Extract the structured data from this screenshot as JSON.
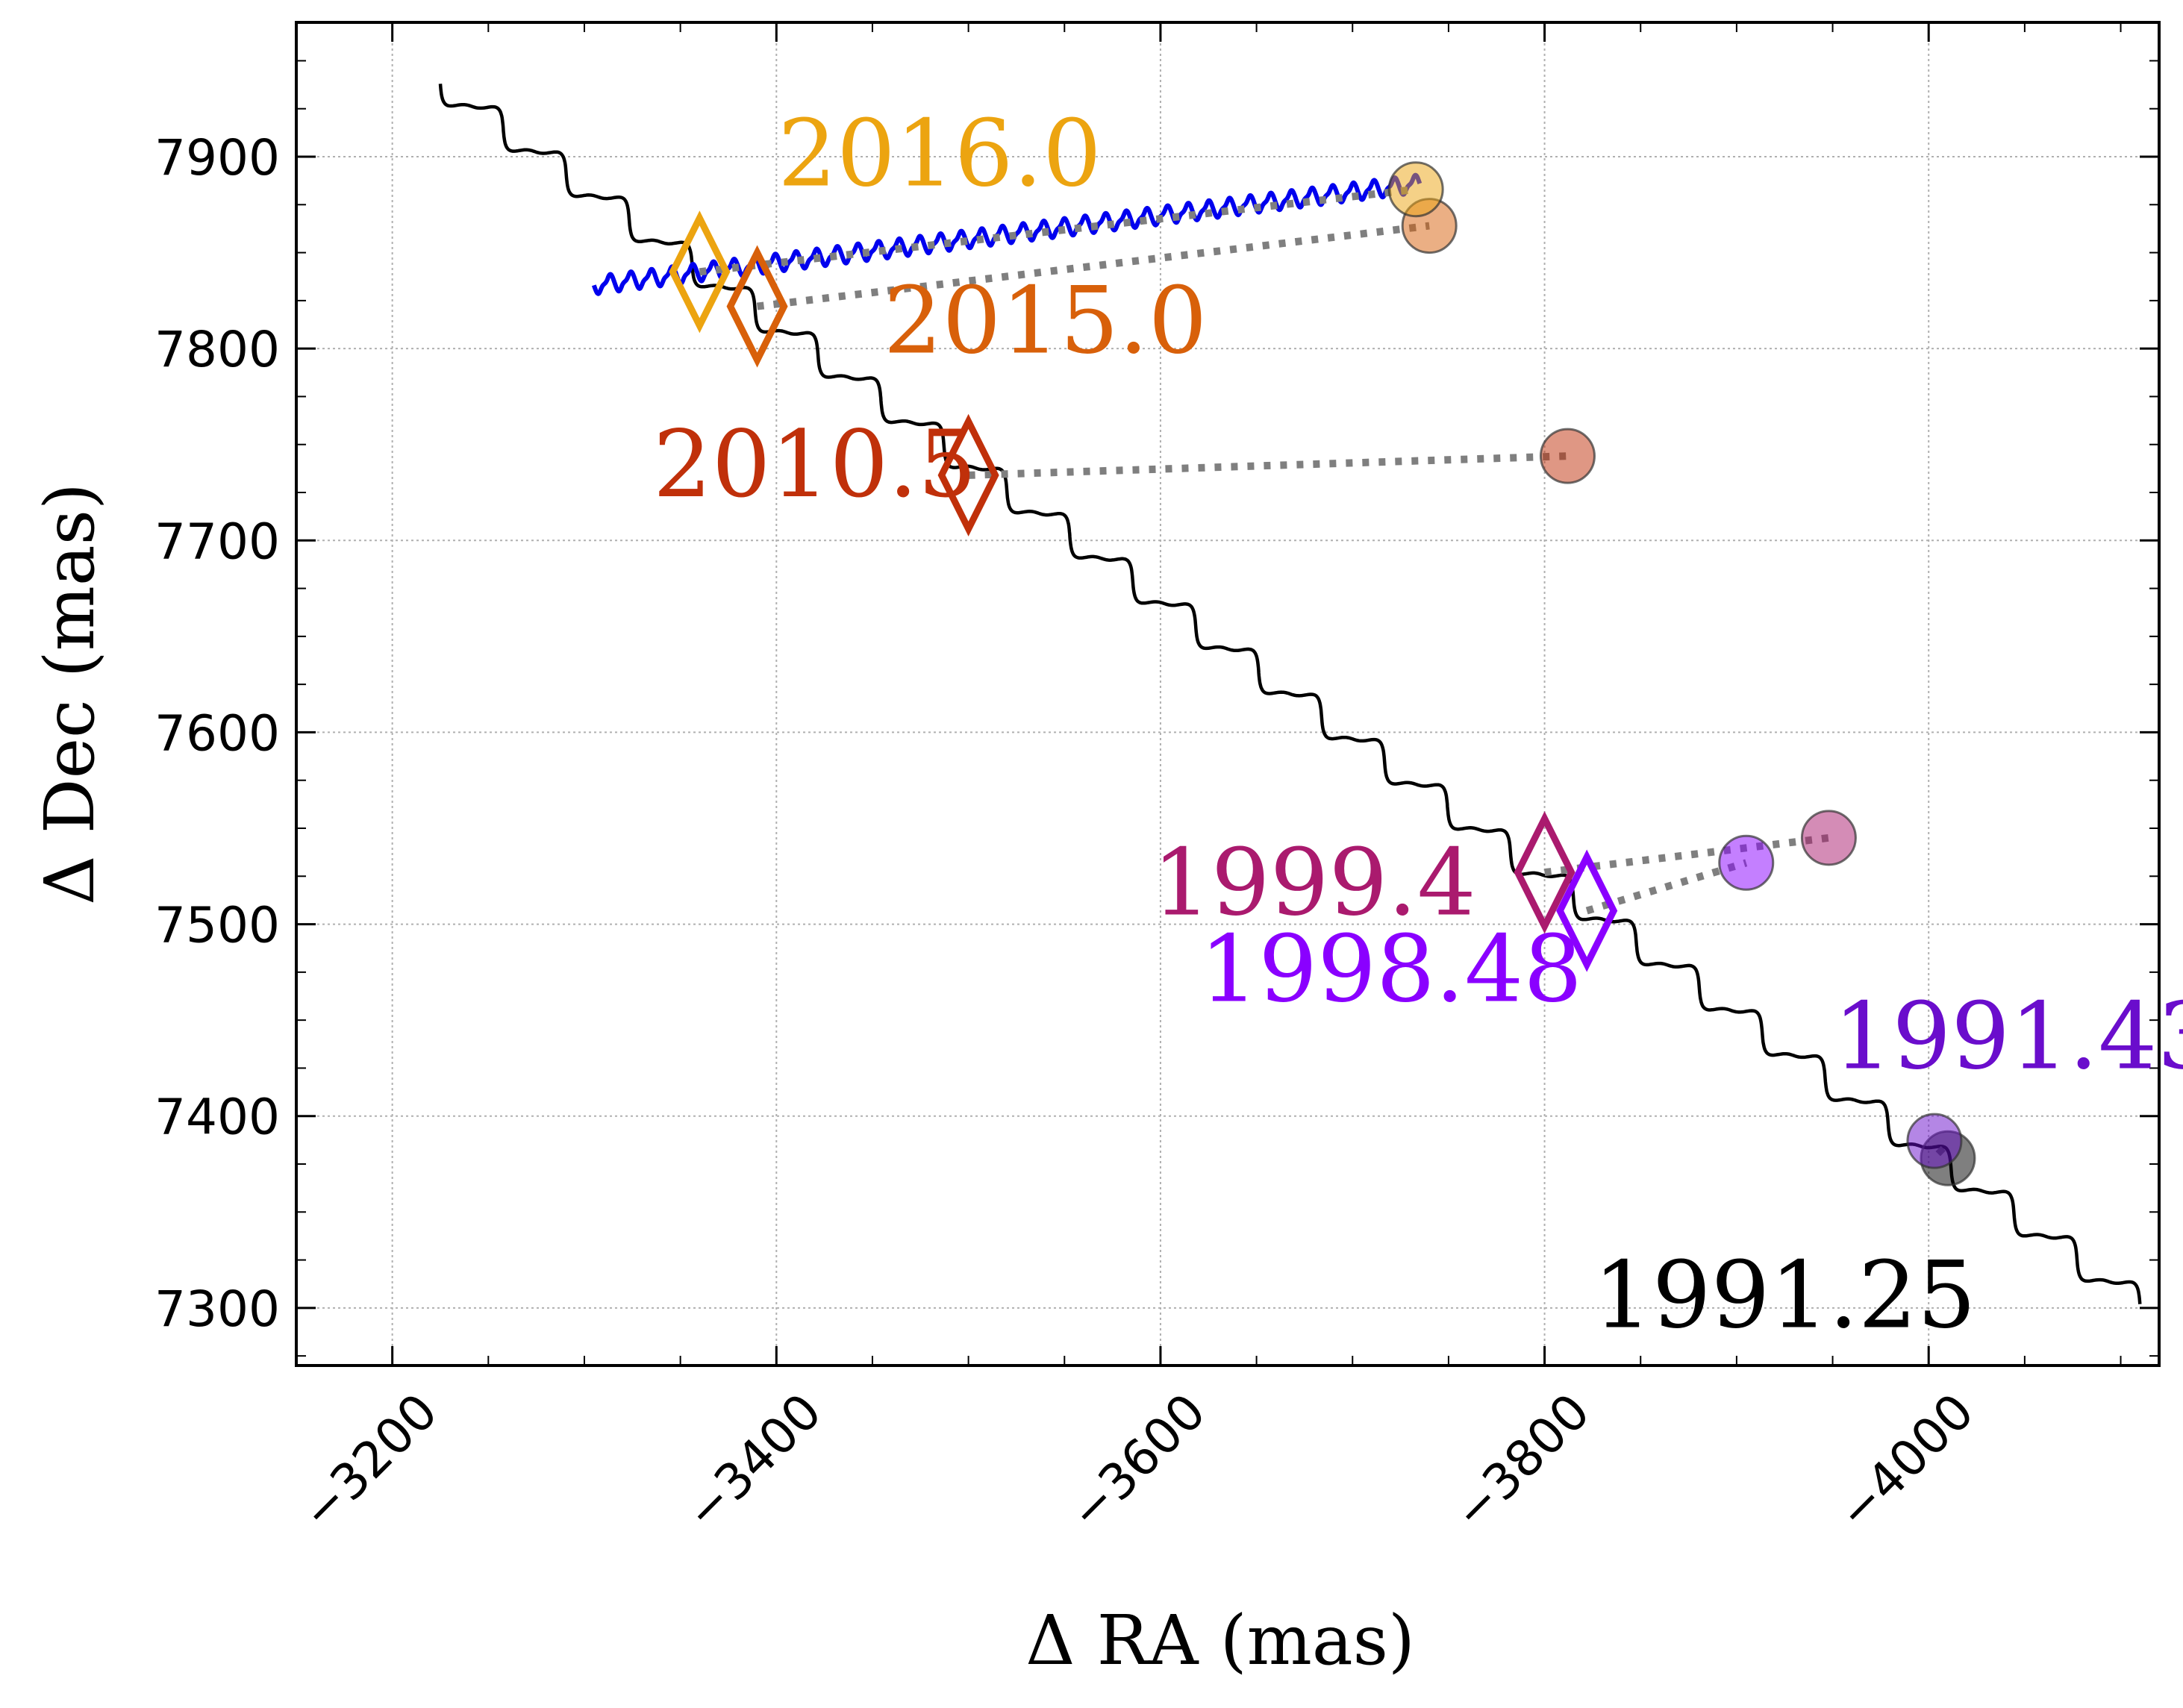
{
  "chart_data": {
    "type": "scatter",
    "title": "",
    "xlabel": "Δ RA (mas)",
    "ylabel": "Δ Dec (mas)",
    "xlim": [
      -3150,
      -4120
    ],
    "ylim": [
      7270,
      7970
    ],
    "xticks": [
      -3200,
      -3400,
      -3600,
      -3800,
      -4000
    ],
    "yticks": [
      7300,
      7400,
      7500,
      7600,
      7700,
      7800,
      7900
    ],
    "xtick_labels": [
      "−3200",
      "−3400",
      "−3600",
      "−3800",
      "−4000"
    ],
    "ytick_labels": [
      "7300",
      "7400",
      "7500",
      "7600",
      "7700",
      "7800",
      "7900"
    ],
    "grid": true,
    "background_track": {
      "name": "background-star track",
      "color": "#000000",
      "start": [
        -3225,
        7938
      ],
      "end": [
        -4110,
        7302
      ],
      "wiggle_cycles": 27,
      "wiggle_amplitude": 7
    },
    "companion_track": {
      "name": "companion track",
      "color": "#0000ee",
      "start": [
        -3305,
        7833
      ],
      "end": [
        -3735,
        7886
      ],
      "wiggle_cycles": 40,
      "wiggle_amplitude": 4
    },
    "epochs": [
      {
        "label": "1991.25",
        "color": "#000000",
        "observed": [
          -4010,
          7378
        ],
        "predicted": [
          -4005,
          7383
        ],
        "label_pos": [
          -3925,
          7290
        ]
      },
      {
        "label": "1991.43",
        "color": "#6a0dcc",
        "observed": [
          -4003,
          7387
        ],
        "predicted": [
          -4003,
          7387
        ],
        "label_pos": [
          -4050,
          7425
        ]
      },
      {
        "label": "1998.48",
        "color": "#8a00ff",
        "observed": [
          -3905,
          7532
        ],
        "predicted": [
          -3822,
          7507
        ],
        "label_pos": [
          -3720,
          7460
        ]
      },
      {
        "label": "1999.4",
        "color": "#aa1a6e",
        "observed": [
          -3948,
          7545
        ],
        "predicted": [
          -3800,
          7527
        ],
        "label_pos": [
          -3680,
          7505
        ]
      },
      {
        "label": "2010.5",
        "color": "#c0300a",
        "observed": [
          -3812,
          7744
        ],
        "predicted": [
          -3500,
          7734
        ],
        "label_pos": [
          -3420,
          7723
        ]
      },
      {
        "label": "2015.0",
        "color": "#d8600a",
        "observed": [
          -3740,
          7864
        ],
        "predicted": [
          -3390,
          7822
        ],
        "label_pos": [
          -3540,
          7798
        ]
      },
      {
        "label": "2016.0",
        "color": "#eca410",
        "observed": [
          -3733,
          7883
        ],
        "predicted": [
          -3360,
          7840
        ],
        "label_pos": [
          -3485,
          7885
        ]
      }
    ]
  }
}
